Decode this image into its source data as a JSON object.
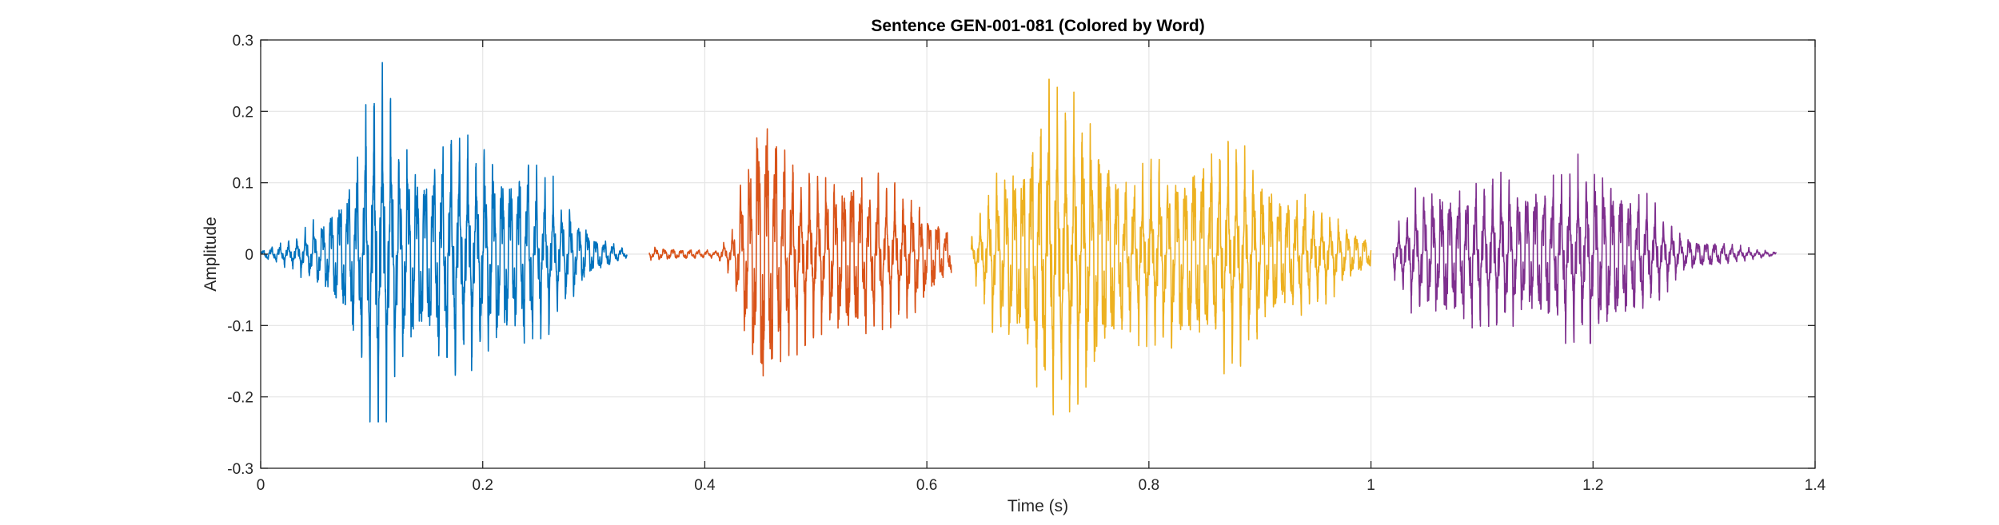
{
  "chart_data": {
    "type": "line",
    "title": "Sentence GEN-001-081 (Colored by Word)",
    "xlabel": "Time (s)",
    "ylabel": "Amplitude",
    "xlim": [
      0,
      1.4
    ],
    "ylim": [
      -0.3,
      0.3
    ],
    "grid": true,
    "box": true,
    "x_ticks": [
      0,
      0.2,
      0.4,
      0.6,
      0.8,
      1,
      1.2,
      1.4
    ],
    "x_tick_labels": [
      "0",
      "0.2",
      "0.4",
      "0.6",
      "0.8",
      "1",
      "1.2",
      "1.4"
    ],
    "y_ticks": [
      0.3,
      0.2,
      0.1,
      0,
      -0.1,
      -0.2,
      -0.3
    ],
    "y_tick_labels": [
      "0.3",
      "0.2",
      "0.1",
      "0",
      "-0.1",
      "-0.2",
      "-0.3"
    ],
    "series": [
      {
        "color": "#0072BD",
        "start": 0.0,
        "end": 0.33,
        "peak_max": 0.27,
        "peak_min": -0.235,
        "envelope": [
          {
            "t": 0.0,
            "a": 0.005
          },
          {
            "t": 0.03,
            "a": 0.02
          },
          {
            "t": 0.06,
            "a": 0.06
          },
          {
            "t": 0.085,
            "a": 0.13
          },
          {
            "t": 0.105,
            "a": 0.25
          },
          {
            "t": 0.125,
            "a": 0.15
          },
          {
            "t": 0.15,
            "a": 0.14
          },
          {
            "t": 0.175,
            "a": 0.17
          },
          {
            "t": 0.2,
            "a": 0.14
          },
          {
            "t": 0.24,
            "a": 0.13
          },
          {
            "t": 0.27,
            "a": 0.08
          },
          {
            "t": 0.3,
            "a": 0.03
          },
          {
            "t": 0.33,
            "a": 0.005
          }
        ]
      },
      {
        "color": "#D95319",
        "start": 0.35,
        "end": 0.622,
        "peak_max": 0.24,
        "peak_min": -0.205,
        "envelope": [
          {
            "t": 0.35,
            "a": 0.01
          },
          {
            "t": 0.41,
            "a": 0.005
          },
          {
            "t": 0.425,
            "a": 0.03
          },
          {
            "t": 0.44,
            "a": 0.16
          },
          {
            "t": 0.452,
            "a": 0.23
          },
          {
            "t": 0.475,
            "a": 0.14
          },
          {
            "t": 0.5,
            "a": 0.1
          },
          {
            "t": 0.53,
            "a": 0.13
          },
          {
            "t": 0.56,
            "a": 0.1
          },
          {
            "t": 0.6,
            "a": 0.07
          },
          {
            "t": 0.622,
            "a": 0.03
          }
        ]
      },
      {
        "color": "#EDB120",
        "start": 0.64,
        "end": 1.0,
        "peak_max": 0.245,
        "peak_min": -0.225,
        "envelope": [
          {
            "t": 0.64,
            "a": 0.02
          },
          {
            "t": 0.66,
            "a": 0.1
          },
          {
            "t": 0.69,
            "a": 0.16
          },
          {
            "t": 0.71,
            "a": 0.23
          },
          {
            "t": 0.73,
            "a": 0.2
          },
          {
            "t": 0.755,
            "a": 0.19
          },
          {
            "t": 0.78,
            "a": 0.11
          },
          {
            "t": 0.82,
            "a": 0.13
          },
          {
            "t": 0.85,
            "a": 0.15
          },
          {
            "t": 0.88,
            "a": 0.14
          },
          {
            "t": 0.92,
            "a": 0.1
          },
          {
            "t": 0.96,
            "a": 0.06
          },
          {
            "t": 1.0,
            "a": 0.02
          }
        ]
      },
      {
        "color": "#7E2F8E",
        "start": 1.02,
        "end": 1.365,
        "peak_max": 0.14,
        "peak_min": -0.125,
        "envelope": [
          {
            "t": 1.02,
            "a": 0.03
          },
          {
            "t": 1.04,
            "a": 0.08
          },
          {
            "t": 1.07,
            "a": 0.1
          },
          {
            "t": 1.1,
            "a": 0.1
          },
          {
            "t": 1.14,
            "a": 0.1
          },
          {
            "t": 1.18,
            "a": 0.11
          },
          {
            "t": 1.2,
            "a": 0.13
          },
          {
            "t": 1.23,
            "a": 0.1
          },
          {
            "t": 1.255,
            "a": 0.07
          },
          {
            "t": 1.28,
            "a": 0.025
          },
          {
            "t": 1.31,
            "a": 0.018
          },
          {
            "t": 1.34,
            "a": 0.008
          },
          {
            "t": 1.365,
            "a": 0.003
          }
        ]
      }
    ]
  }
}
